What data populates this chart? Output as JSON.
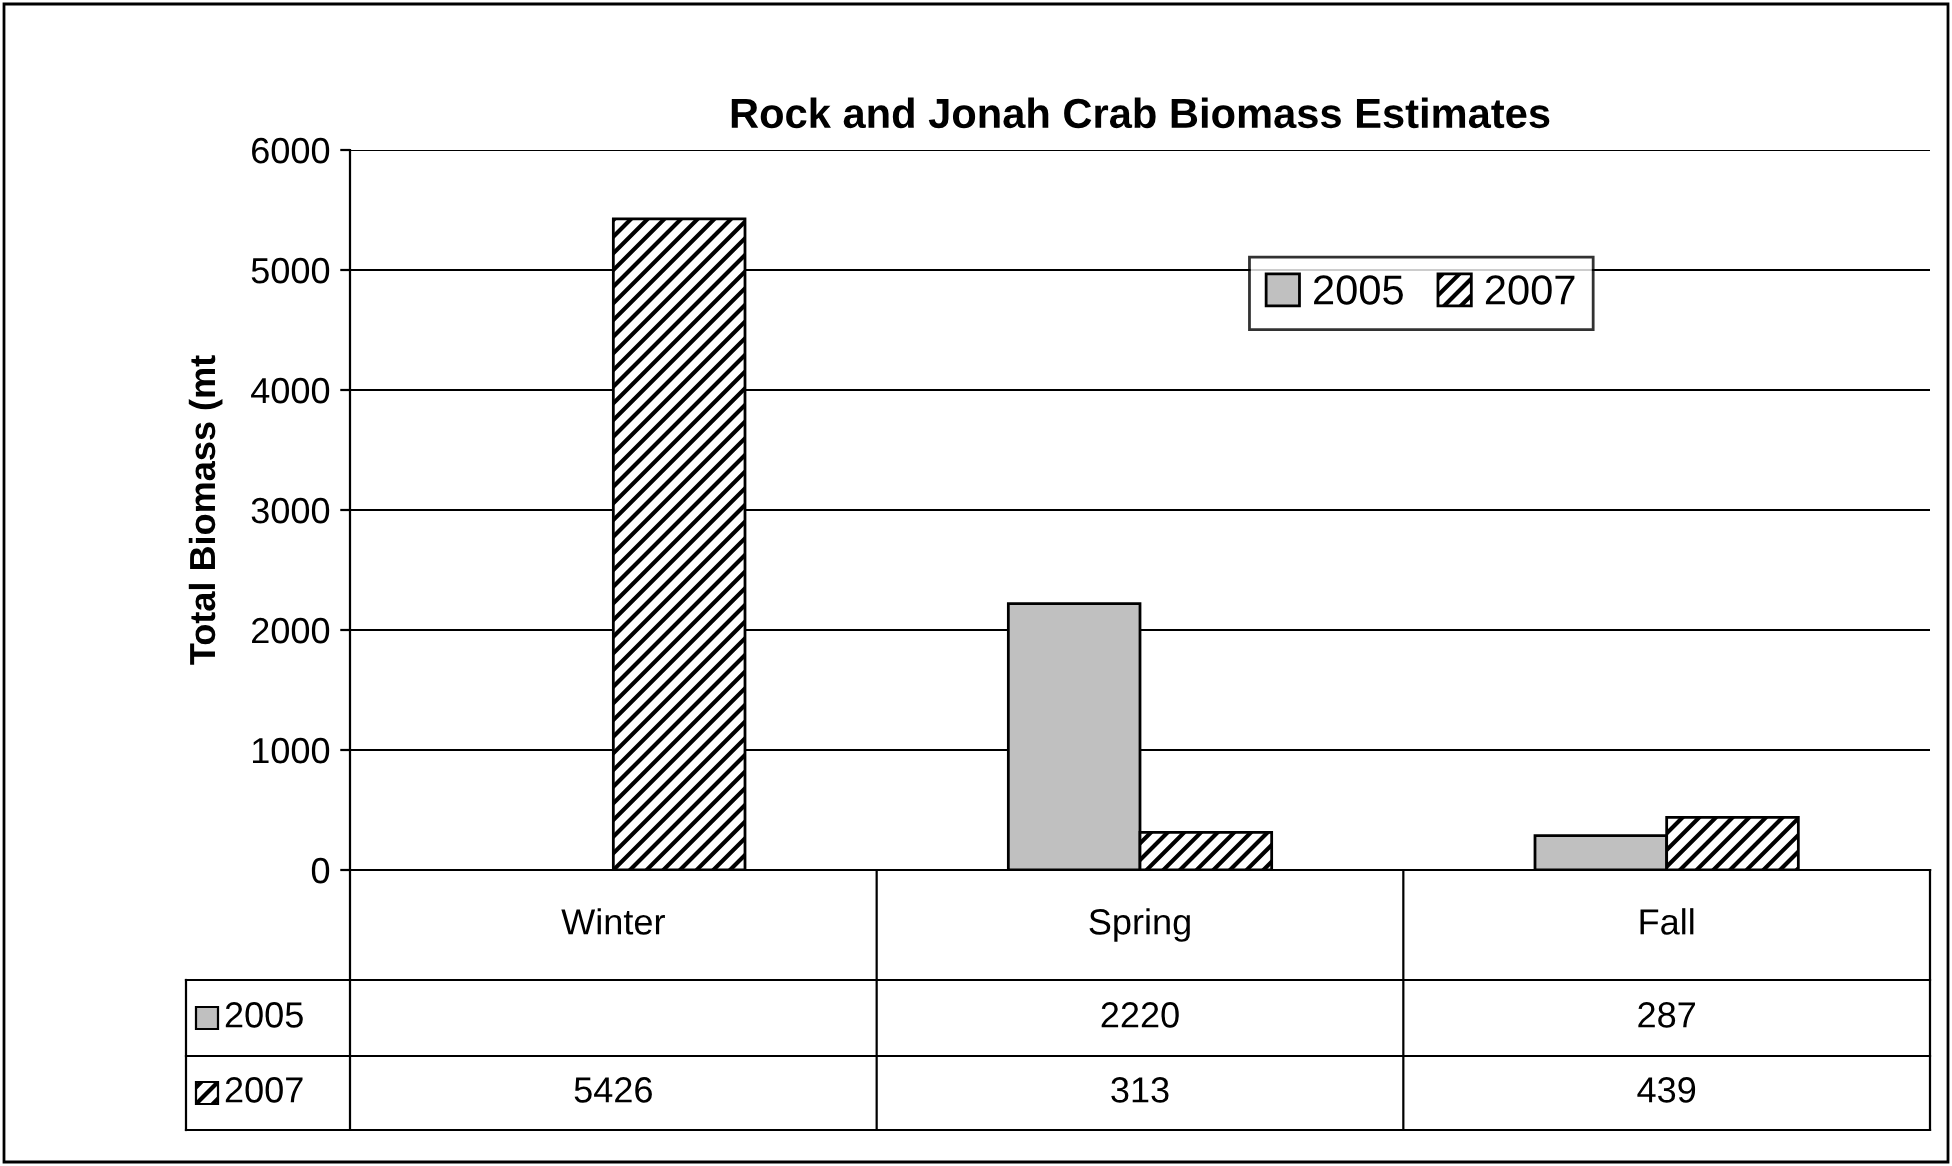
{
  "chart_data": {
    "type": "bar",
    "title": "Rock and Jonah Crab Biomass Estimates",
    "ylabel": "Total Biomass (mt",
    "categories": [
      "Winter",
      "Spring",
      "Fall"
    ],
    "series": [
      {
        "name": "2005",
        "color": "#c0c0c0",
        "values": [
          null,
          2220,
          287
        ]
      },
      {
        "name": "2007",
        "color": "#000000",
        "values": [
          5426,
          313,
          439
        ]
      }
    ],
    "ylim": [
      0,
      6000
    ],
    "yticks": [
      0,
      1000,
      2000,
      3000,
      4000,
      5000,
      6000
    ],
    "grid": "y",
    "legend": "top right",
    "data_labels": true
  }
}
